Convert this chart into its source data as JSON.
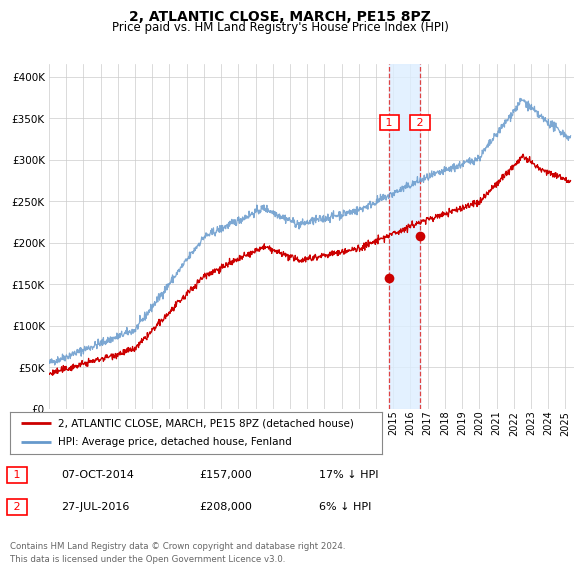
{
  "title": "2, ATLANTIC CLOSE, MARCH, PE15 8PZ",
  "subtitle": "Price paid vs. HM Land Registry's House Price Index (HPI)",
  "ytick_values": [
    0,
    50000,
    100000,
    150000,
    200000,
    250000,
    300000,
    350000,
    400000
  ],
  "ylim": [
    0,
    415000
  ],
  "xlim_start": 1995.0,
  "xlim_end": 2025.5,
  "marker1_x": 2014.77,
  "marker1_y": 157000,
  "marker2_x": 2016.57,
  "marker2_y": 208000,
  "legend_line1": "2, ATLANTIC CLOSE, MARCH, PE15 8PZ (detached house)",
  "legend_line2": "HPI: Average price, detached house, Fenland",
  "footnote": "Contains HM Land Registry data © Crown copyright and database right 2024.\nThis data is licensed under the Open Government Licence v3.0.",
  "red_color": "#cc0000",
  "blue_color": "#6699cc",
  "background_color": "#ffffff",
  "grid_color": "#cccccc",
  "shade_color": "#ddeeff"
}
